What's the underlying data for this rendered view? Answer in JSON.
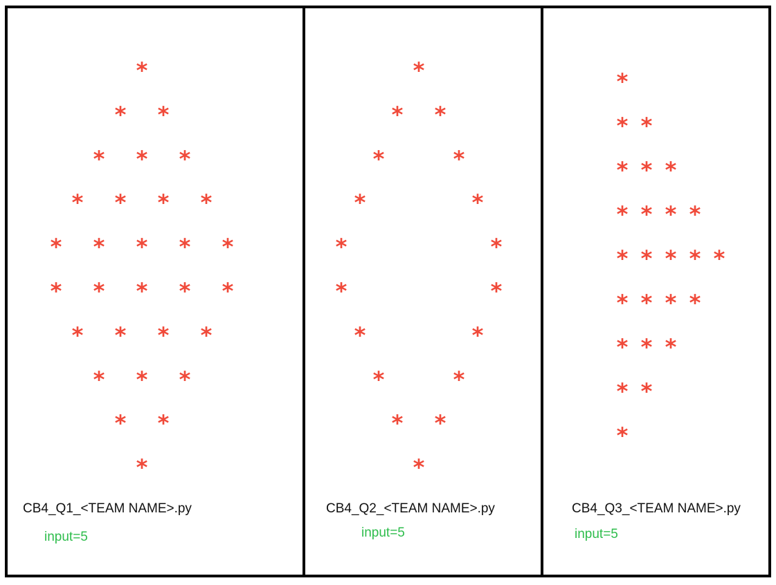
{
  "colors": {
    "star": "#f04a3a",
    "input_text": "#2ebd4c",
    "border": "#000000"
  },
  "panels": [
    {
      "filename": "CB4_Q1_<TEAM NAME>.py",
      "input_label": "input=5",
      "pattern": "filled-diamond",
      "rows": [
        1,
        2,
        3,
        4,
        5,
        5,
        4,
        3,
        2,
        1
      ]
    },
    {
      "filename": "CB4_Q2_<TEAM NAME>.py",
      "input_label": "input=5",
      "pattern": "hollow-diamond",
      "rows": [
        1,
        2,
        2,
        2,
        2,
        2,
        2,
        2,
        2,
        1
      ]
    },
    {
      "filename": "CB4_Q3_<TEAM NAME>.py",
      "input_label": "input=5",
      "pattern": "left-aligned-triangle",
      "rows": [
        1,
        2,
        3,
        4,
        5,
        4,
        3,
        2,
        1
      ]
    }
  ]
}
